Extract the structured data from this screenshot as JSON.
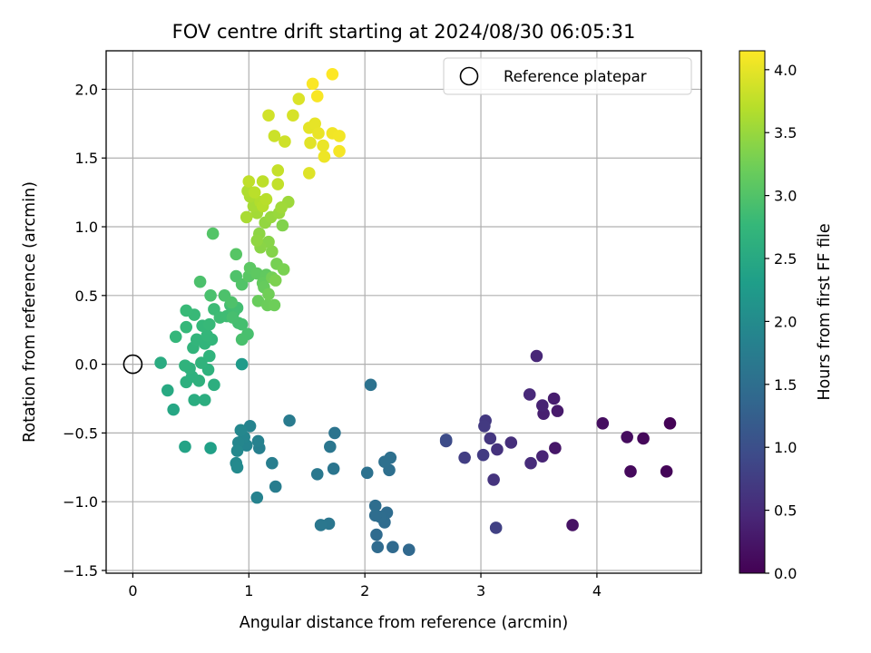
{
  "chart_data": {
    "type": "scatter",
    "title": "FOV centre drift starting at 2024/08/30 06:05:31",
    "xlabel": "Angular distance from reference (arcmin)",
    "ylabel": "Rotation from reference (arcmin)",
    "xlim": [
      -0.23,
      4.9
    ],
    "ylim": [
      -1.52,
      2.28
    ],
    "xticks": [
      0,
      1,
      2,
      3,
      4
    ],
    "yticks": [
      -1.5,
      -1.0,
      -0.5,
      0.0,
      0.5,
      1.0,
      1.5,
      2.0
    ],
    "grid": true,
    "legend": {
      "placement": "top-right",
      "entries": [
        "Reference platepar"
      ]
    },
    "reference_point": {
      "x": 0.0,
      "y": 0.0,
      "label": "Reference platepar"
    },
    "colorbar": {
      "label": "Hours from first FF file",
      "colormap": "viridis",
      "range": [
        0.0,
        4.15
      ],
      "ticks": [
        0.0,
        0.5,
        1.0,
        1.5,
        2.0,
        2.5,
        3.0,
        3.5,
        4.0
      ]
    },
    "points": [
      [
        4.63,
        -0.43,
        0.02
      ],
      [
        4.6,
        -0.78,
        0.05
      ],
      [
        4.4,
        -0.54,
        0.08
      ],
      [
        4.29,
        -0.78,
        0.1
      ],
      [
        4.26,
        -0.53,
        0.13
      ],
      [
        4.05,
        -0.43,
        0.15
      ],
      [
        3.79,
        -1.17,
        0.2
      ],
      [
        3.64,
        -0.61,
        0.25
      ],
      [
        3.66,
        -0.34,
        0.3
      ],
      [
        3.63,
        -0.25,
        0.33
      ],
      [
        3.54,
        -0.36,
        0.36
      ],
      [
        3.53,
        -0.3,
        0.4
      ],
      [
        3.48,
        0.06,
        0.45
      ],
      [
        3.53,
        -0.67,
        0.42
      ],
      [
        3.42,
        -0.22,
        0.48
      ],
      [
        3.43,
        -0.72,
        0.52
      ],
      [
        3.26,
        -0.57,
        0.55
      ],
      [
        3.14,
        -0.62,
        0.6
      ],
      [
        3.11,
        -0.84,
        0.62
      ],
      [
        3.08,
        -0.54,
        0.65
      ],
      [
        3.04,
        -0.41,
        0.68
      ],
      [
        3.03,
        -0.45,
        0.7
      ],
      [
        3.02,
        -0.66,
        0.72
      ],
      [
        2.86,
        -0.68,
        0.76
      ],
      [
        3.13,
        -1.19,
        0.8
      ],
      [
        2.7,
        -0.56,
        0.9
      ],
      [
        2.7,
        -0.55,
        0.95
      ],
      [
        2.38,
        -1.35,
        1.4
      ],
      [
        2.24,
        -1.33,
        1.42
      ],
      [
        2.11,
        -1.33,
        1.43
      ],
      [
        2.1,
        -1.24,
        1.44
      ],
      [
        2.19,
        -1.08,
        1.45
      ],
      [
        2.17,
        -1.15,
        1.46
      ],
      [
        2.13,
        -1.11,
        1.47
      ],
      [
        2.09,
        -1.1,
        1.48
      ],
      [
        2.09,
        -1.03,
        1.49
      ],
      [
        2.21,
        -0.77,
        1.5
      ],
      [
        2.22,
        -0.68,
        1.52
      ],
      [
        2.17,
        -0.71,
        1.53
      ],
      [
        2.02,
        -0.79,
        1.55
      ],
      [
        2.05,
        -0.15,
        1.56
      ],
      [
        1.74,
        -0.5,
        1.6
      ],
      [
        1.73,
        -0.76,
        1.62
      ],
      [
        1.7,
        -0.6,
        1.63
      ],
      [
        1.69,
        -1.16,
        1.64
      ],
      [
        1.62,
        -1.17,
        1.65
      ],
      [
        1.59,
        -0.8,
        1.67
      ],
      [
        1.35,
        -0.41,
        1.72
      ],
      [
        1.23,
        -0.89,
        1.75
      ],
      [
        1.2,
        -0.72,
        1.77
      ],
      [
        1.09,
        -0.61,
        1.8
      ],
      [
        1.08,
        -0.56,
        1.82
      ],
      [
        1.07,
        -0.97,
        1.84
      ],
      [
        1.01,
        -0.45,
        1.86
      ],
      [
        0.98,
        -0.59,
        1.88
      ],
      [
        0.96,
        -0.53,
        1.9
      ],
      [
        0.91,
        -0.57,
        1.91
      ],
      [
        0.93,
        -0.48,
        1.92
      ],
      [
        0.9,
        -0.63,
        1.94
      ],
      [
        0.89,
        -0.72,
        1.96
      ],
      [
        0.9,
        -0.75,
        1.98
      ],
      [
        0.94,
        0.0,
        2.25
      ],
      [
        0.67,
        -0.61,
        2.35
      ],
      [
        0.45,
        -0.6,
        2.4
      ],
      [
        0.35,
        -0.33,
        2.45
      ],
      [
        0.3,
        -0.19,
        2.5
      ],
      [
        0.24,
        0.01,
        2.55
      ],
      [
        0.53,
        -0.26,
        2.56
      ],
      [
        0.62,
        -0.26,
        2.58
      ],
      [
        0.7,
        -0.15,
        2.6
      ],
      [
        0.46,
        -0.13,
        2.62
      ],
      [
        0.51,
        -0.09,
        2.63
      ],
      [
        0.57,
        -0.12,
        2.64
      ],
      [
        0.65,
        -0.04,
        2.65
      ],
      [
        0.49,
        -0.03,
        2.66
      ],
      [
        0.45,
        -0.01,
        2.67
      ],
      [
        0.59,
        0.01,
        2.68
      ],
      [
        0.66,
        0.06,
        2.69
      ],
      [
        0.52,
        0.12,
        2.7
      ],
      [
        0.62,
        0.15,
        2.71
      ],
      [
        0.55,
        0.18,
        2.72
      ],
      [
        0.68,
        0.18,
        2.73
      ],
      [
        0.37,
        0.2,
        2.74
      ],
      [
        0.64,
        0.21,
        2.75
      ],
      [
        0.46,
        0.27,
        2.76
      ],
      [
        0.6,
        0.28,
        2.77
      ],
      [
        0.66,
        0.29,
        2.78
      ],
      [
        0.53,
        0.36,
        2.79
      ],
      [
        0.46,
        0.39,
        2.8
      ],
      [
        0.7,
        0.4,
        2.82
      ],
      [
        0.75,
        0.34,
        2.84
      ],
      [
        0.81,
        0.35,
        2.85
      ],
      [
        0.87,
        0.38,
        2.86
      ],
      [
        0.84,
        0.43,
        2.87
      ],
      [
        0.9,
        0.41,
        2.88
      ],
      [
        0.91,
        0.3,
        2.89
      ],
      [
        0.94,
        0.29,
        2.9
      ],
      [
        0.86,
        0.34,
        2.91
      ],
      [
        0.99,
        0.22,
        2.92
      ],
      [
        0.94,
        0.18,
        2.93
      ],
      [
        0.67,
        0.5,
        2.94
      ],
      [
        0.58,
        0.6,
        2.95
      ],
      [
        0.79,
        0.5,
        2.96
      ],
      [
        0.85,
        0.45,
        2.97
      ],
      [
        0.89,
        0.64,
        2.98
      ],
      [
        0.94,
        0.58,
        3.0
      ],
      [
        0.69,
        0.95,
        3.02
      ],
      [
        0.89,
        0.8,
        3.04
      ],
      [
        1.0,
        0.64,
        3.06
      ],
      [
        1.01,
        0.7,
        3.08
      ],
      [
        1.07,
        0.66,
        3.1
      ],
      [
        1.15,
        0.65,
        3.12
      ],
      [
        1.12,
        0.59,
        3.14
      ],
      [
        1.13,
        0.56,
        3.16
      ],
      [
        1.08,
        0.46,
        3.18
      ],
      [
        1.16,
        0.43,
        3.2
      ],
      [
        1.22,
        0.43,
        3.22
      ],
      [
        1.17,
        0.51,
        3.24
      ],
      [
        1.2,
        0.63,
        3.26
      ],
      [
        1.24,
        0.73,
        3.28
      ],
      [
        1.3,
        0.69,
        3.3
      ],
      [
        1.23,
        0.61,
        3.32
      ],
      [
        1.29,
        1.01,
        3.35
      ],
      [
        1.2,
        0.82,
        3.37
      ],
      [
        1.17,
        0.89,
        3.39
      ],
      [
        1.1,
        0.85,
        3.41
      ],
      [
        1.09,
        0.95,
        3.43
      ],
      [
        1.07,
        0.9,
        3.45
      ],
      [
        1.14,
        1.03,
        3.47
      ],
      [
        1.19,
        1.07,
        3.49
      ],
      [
        1.26,
        1.1,
        3.51
      ],
      [
        1.34,
        1.18,
        3.53
      ],
      [
        1.28,
        1.14,
        3.55
      ],
      [
        1.07,
        1.1,
        3.57
      ],
      [
        1.04,
        1.15,
        3.59
      ],
      [
        0.98,
        1.07,
        3.61
      ],
      [
        1.01,
        1.22,
        3.63
      ],
      [
        0.99,
        1.26,
        3.65
      ],
      [
        1.1,
        1.18,
        3.67
      ],
      [
        1.12,
        1.15,
        3.69
      ],
      [
        1.15,
        1.2,
        3.71
      ],
      [
        1.05,
        1.25,
        3.72
      ],
      [
        1.12,
        1.33,
        3.74
      ],
      [
        1.0,
        1.33,
        3.75
      ],
      [
        1.25,
        1.31,
        3.77
      ],
      [
        1.25,
        1.41,
        3.79
      ],
      [
        1.22,
        1.66,
        3.83
      ],
      [
        1.31,
        1.62,
        3.85
      ],
      [
        1.17,
        1.81,
        3.87
      ],
      [
        1.38,
        1.81,
        3.9
      ],
      [
        1.43,
        1.93,
        3.93
      ],
      [
        1.52,
        1.39,
        3.95
      ],
      [
        1.53,
        1.61,
        3.97
      ],
      [
        1.52,
        1.72,
        3.99
      ],
      [
        1.57,
        1.75,
        4.0
      ],
      [
        1.6,
        1.68,
        4.02
      ],
      [
        1.64,
        1.59,
        4.03
      ],
      [
        1.65,
        1.51,
        4.05
      ],
      [
        1.72,
        1.68,
        4.07
      ],
      [
        1.78,
        1.66,
        4.08
      ],
      [
        1.78,
        1.55,
        4.1
      ],
      [
        1.59,
        1.95,
        4.12
      ],
      [
        1.55,
        2.04,
        4.13
      ],
      [
        1.72,
        2.11,
        4.15
      ]
    ]
  }
}
